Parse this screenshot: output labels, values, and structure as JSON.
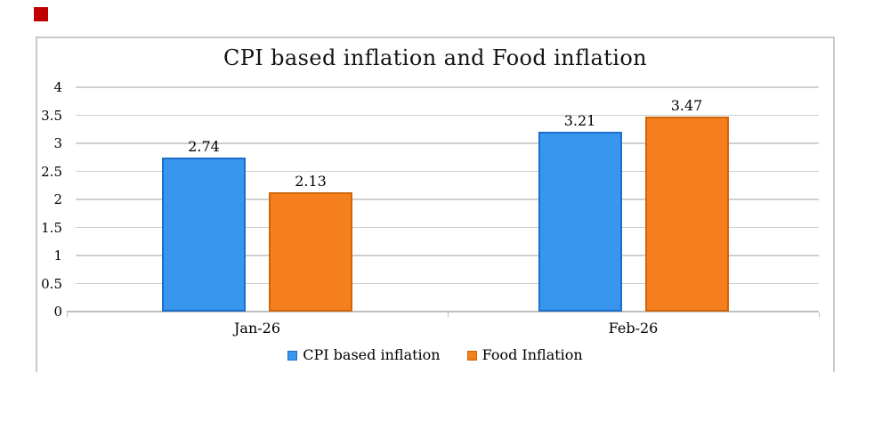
{
  "chart_data": {
    "type": "bar",
    "title": "CPI based inflation and Food inflation",
    "categories": [
      "Jan-26",
      "Feb-26"
    ],
    "series": [
      {
        "name": "CPI based inflation",
        "color": "#3996ee",
        "border_color": "#1b6fc9",
        "values": [
          2.74,
          3.21
        ],
        "labels": [
          "2.74",
          "3.21"
        ]
      },
      {
        "name": "Food Inflation",
        "color": "#f57e1d",
        "border_color": "#ce660b",
        "values": [
          2.13,
          3.47
        ],
        "labels": [
          "2.13",
          "3.47"
        ]
      }
    ],
    "y_axis": {
      "min": 0,
      "max": 4,
      "step": 0.5,
      "tick_labels": [
        "4",
        "3.5",
        "3",
        "2.5",
        "2",
        "1.5",
        "1",
        "0.5",
        "0"
      ]
    },
    "grid": true,
    "legend_position": "bottom"
  },
  "decorations": {
    "red_marker_color": "#c00000"
  }
}
